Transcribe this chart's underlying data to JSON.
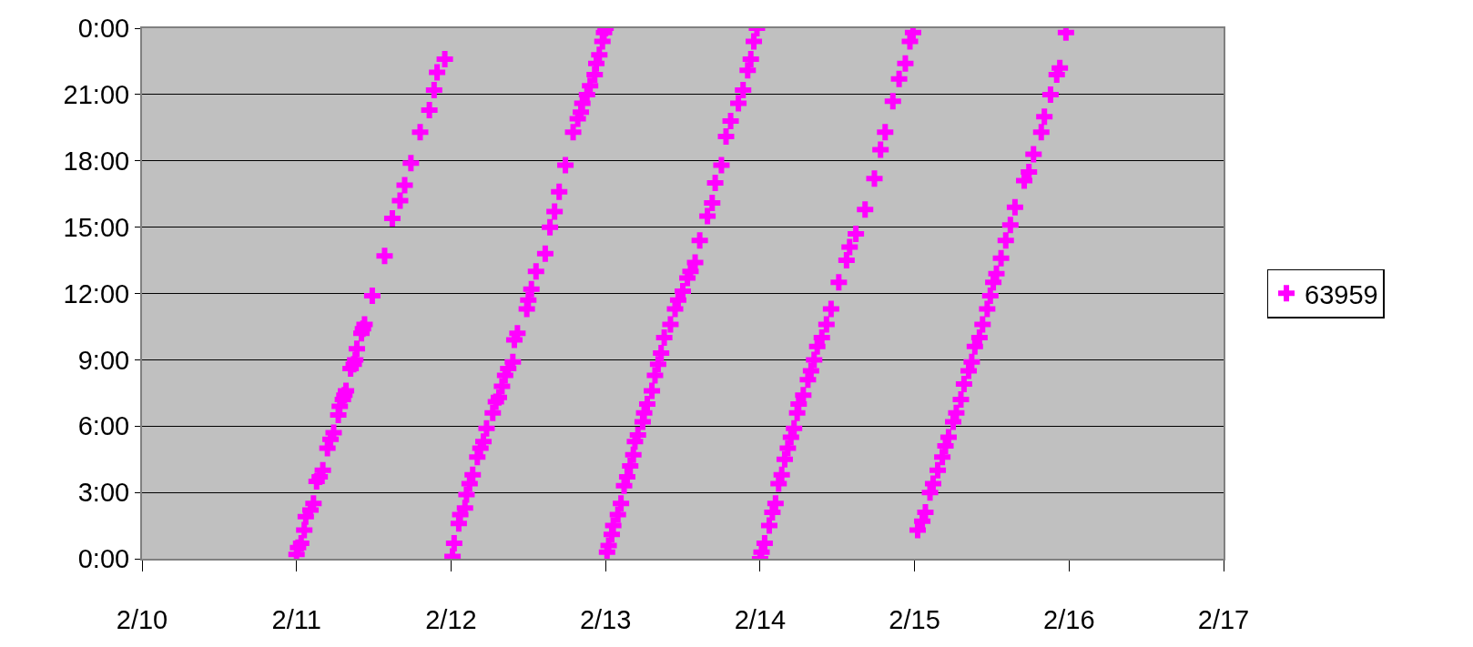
{
  "chart_data": {
    "type": "scatter",
    "xlim": [
      "--02-10",
      "--02-17"
    ],
    "xticks": [
      {
        "value": "--02-10",
        "label": "2/10"
      },
      {
        "value": "--02-11",
        "label": "2/11"
      },
      {
        "value": "--02-12",
        "label": "2/12"
      },
      {
        "value": "--02-13",
        "label": "2/13"
      },
      {
        "value": "--02-14",
        "label": "2/14"
      },
      {
        "value": "--02-15",
        "label": "2/15"
      },
      {
        "value": "--02-16",
        "label": "2/16"
      },
      {
        "value": "--02-17",
        "label": "2/17"
      }
    ],
    "ylim": [
      0,
      24
    ],
    "yticks": [
      {
        "value": 0,
        "label": "0:00"
      },
      {
        "value": 3,
        "label": "3:00"
      },
      {
        "value": 6,
        "label": "6:00"
      },
      {
        "value": 9,
        "label": "9:00"
      },
      {
        "value": 12,
        "label": "12:00"
      },
      {
        "value": 15,
        "label": "15:00"
      },
      {
        "value": 18,
        "label": "18:00"
      },
      {
        "value": 21,
        "label": "21:00"
      },
      {
        "value": 24,
        "label": "0:00"
      }
    ],
    "grid": "y",
    "legend": "right",
    "marker": "cross",
    "series": [
      {
        "name": "63959",
        "color": "#ff00ff",
        "x": [
          "--02-11T00:00",
          "--02-11T00:14",
          "--02-11T00:43",
          "--02-11T01:12",
          "--02-11T01:26",
          "--02-11T02:10",
          "--02-11T02:38",
          "--02-11T03:07",
          "--02-11T03:36",
          "--02-11T04:05",
          "--02-11T04:48",
          "--02-11T05:17",
          "--02-11T05:46",
          "--02-11T06:29",
          "--02-11T06:43",
          "--02-11T07:12",
          "--02-11T07:26",
          "--02-11T07:41",
          "--02-11T08:24",
          "--02-11T08:53",
          "--02-11T09:07",
          "--02-11T09:22",
          "--02-11T10:05",
          "--02-11T10:19",
          "--02-11T10:34",
          "--02-11T11:46",
          "--02-11T13:41",
          "--02-11T14:53",
          "--02-11T16:05",
          "--02-11T16:48",
          "--02-11T17:46",
          "--02-11T19:12",
          "--02-11T20:38",
          "--02-11T21:22",
          "--02-11T21:50",
          "--02-11T23:02",
          "--02-12T00:14",
          "--02-12T00:29",
          "--02-12T01:12",
          "--02-12T01:26",
          "--02-12T02:10",
          "--02-12T02:24",
          "--02-12T02:53",
          "--02-12T03:22",
          "--02-12T04:05",
          "--02-12T04:34",
          "--02-12T05:02",
          "--02-12T05:31",
          "--02-12T06:29",
          "--02-12T06:58",
          "--02-12T07:26",
          "--02-12T07:55",
          "--02-12T08:24",
          "--02-12T08:53",
          "--02-12T09:36",
          "--02-12T09:50",
          "--02-12T10:19",
          "--02-12T11:46",
          "--02-12T12:00",
          "--02-12T12:29",
          "--02-12T13:12",
          "--02-12T14:38",
          "--02-12T15:22",
          "--02-12T16:05",
          "--02-12T16:48",
          "--02-12T17:46",
          "--02-12T18:58",
          "--02-12T19:41",
          "--02-12T20:10",
          "--02-12T20:24",
          "--02-12T21:07",
          "--02-12T21:36",
          "--02-12T22:19",
          "--02-12T22:34",
          "--02-12T23:02",
          "--02-12T23:31",
          "--02-12T23:46",
          "--02-13T00:00",
          "--02-13T00:14",
          "--02-13T00:29",
          "--02-13T00:58",
          "--02-13T01:12",
          "--02-13T01:55",
          "--02-13T02:24",
          "--02-13T02:53",
          "--02-13T03:22",
          "--02-13T03:50",
          "--02-13T04:19",
          "--02-13T04:34",
          "--02-13T05:02",
          "--02-13T05:46",
          "--02-13T06:00",
          "--02-13T06:29",
          "--02-13T07:12",
          "--02-13T07:41",
          "--02-13T08:10",
          "--02-13T08:38",
          "--02-13T09:07",
          "--02-13T10:05",
          "--02-13T10:48",
          "--02-13T11:17",
          "--02-13T12:00",
          "--02-13T12:43",
          "--02-13T13:12",
          "--02-13T13:55",
          "--02-13T14:38",
          "--02-13T15:50",
          "--02-13T16:34",
          "--02-13T17:02",
          "--02-13T18:00",
          "--02-13T18:43",
          "--02-13T19:26",
          "--02-13T20:38",
          "--02-13T21:22",
          "--02-13T22:05",
          "--02-13T22:34",
          "--02-13T23:02",
          "--02-13T23:31",
          "--02-14T00:00",
          "--02-14T00:14",
          "--02-14T00:43",
          "--02-14T01:26",
          "--02-14T01:55",
          "--02-14T02:24",
          "--02-14T02:53",
          "--02-14T03:22",
          "--02-14T03:50",
          "--02-14T04:19",
          "--02-14T04:48",
          "--02-14T05:17",
          "--02-14T05:46",
          "--02-14T06:00",
          "--02-14T06:43",
          "--02-14T07:26",
          "--02-14T07:55",
          "--02-14T08:24",
          "--02-14T08:53",
          "--02-14T09:36",
          "--02-14T10:19",
          "--02-14T11:02",
          "--02-14T12:14",
          "--02-14T13:26",
          "--02-14T13:55",
          "--02-14T14:53",
          "--02-14T16:19",
          "--02-14T17:46",
          "--02-14T18:43",
          "--02-14T19:26",
          "--02-14T20:38",
          "--02-14T21:36",
          "--02-14T22:34",
          "--02-14T23:17",
          "--02-14T23:46",
          "--02-15T00:29",
          "--02-15T01:12",
          "--02-15T01:41",
          "--02-15T02:24",
          "--02-15T02:53",
          "--02-15T03:36",
          "--02-15T04:19",
          "--02-15T04:48",
          "--02-15T05:17",
          "--02-15T06:00",
          "--02-15T06:29",
          "--02-15T07:12",
          "--02-15T07:41",
          "--02-15T08:24",
          "--02-15T08:53",
          "--02-15T09:22",
          "--02-15T10:05",
          "--02-15T10:34",
          "--02-15T11:17",
          "--02-15T11:46",
          "--02-15T12:14",
          "--02-15T12:43",
          "--02-15T13:26",
          "--02-15T14:10",
          "--02-15T14:53",
          "--02-15T15:36",
          "--02-15T17:02",
          "--02-15T17:46",
          "--02-15T18:29",
          "--02-15T19:41",
          "--02-15T20:10",
          "--02-15T21:07",
          "--02-15T22:05",
          "--02-15T22:34",
          "--02-15T23:31"
        ],
        "values": [
          0.2,
          0.5,
          0.7,
          1.3,
          1.9,
          2.2,
          2.5,
          3.5,
          3.7,
          4.0,
          5.0,
          5.4,
          5.7,
          6.5,
          6.9,
          7.2,
          7.4,
          7.6,
          8.6,
          8.8,
          9.0,
          9.5,
          10.2,
          10.4,
          10.6,
          11.9,
          13.7,
          15.4,
          16.2,
          16.9,
          17.9,
          19.3,
          20.3,
          21.2,
          22.0,
          22.6,
          0.1,
          0.7,
          1.6,
          2.0,
          2.3,
          2.9,
          3.4,
          3.8,
          4.6,
          5.0,
          5.3,
          5.9,
          6.6,
          7.1,
          7.3,
          7.8,
          8.3,
          8.6,
          8.9,
          9.9,
          10.2,
          11.3,
          11.7,
          12.2,
          13.0,
          13.8,
          15.0,
          15.7,
          16.6,
          17.8,
          19.3,
          19.9,
          20.2,
          20.6,
          21.0,
          21.4,
          21.9,
          22.4,
          22.8,
          23.4,
          23.8,
          24.0,
          0.3,
          0.6,
          1.1,
          1.5,
          2.0,
          2.5,
          3.3,
          3.7,
          4.2,
          4.7,
          5.3,
          5.6,
          6.2,
          6.6,
          7.0,
          7.6,
          8.3,
          8.8,
          9.3,
          10.0,
          10.6,
          11.3,
          11.7,
          12.1,
          12.7,
          13.0,
          13.4,
          14.4,
          15.5,
          16.1,
          17.0,
          17.8,
          19.1,
          19.8,
          20.6,
          21.2,
          22.1,
          22.6,
          23.4,
          24.0,
          0.0,
          0.3,
          0.7,
          1.5,
          2.1,
          2.5,
          3.4,
          3.8,
          4.5,
          5.0,
          5.5,
          5.9,
          6.6,
          7.0,
          7.4,
          8.1,
          8.5,
          9.0,
          9.6,
          10.0,
          10.6,
          11.3,
          12.5,
          13.5,
          14.1,
          14.7,
          15.8,
          17.2,
          18.5,
          19.3,
          20.7,
          21.7,
          22.4,
          23.4,
          23.8,
          1.3,
          1.7,
          2.1,
          3.0,
          3.4,
          4.0,
          4.6,
          5.1,
          5.5,
          6.2,
          6.6,
          7.2,
          7.9,
          8.5,
          8.9,
          9.6,
          10.0,
          10.6,
          11.3,
          11.9,
          12.5,
          12.9,
          13.6,
          14.4,
          15.1,
          15.9,
          17.1,
          17.5,
          18.3,
          19.3,
          20.0,
          21.0,
          21.9,
          22.2,
          23.8
        ]
      }
    ]
  }
}
